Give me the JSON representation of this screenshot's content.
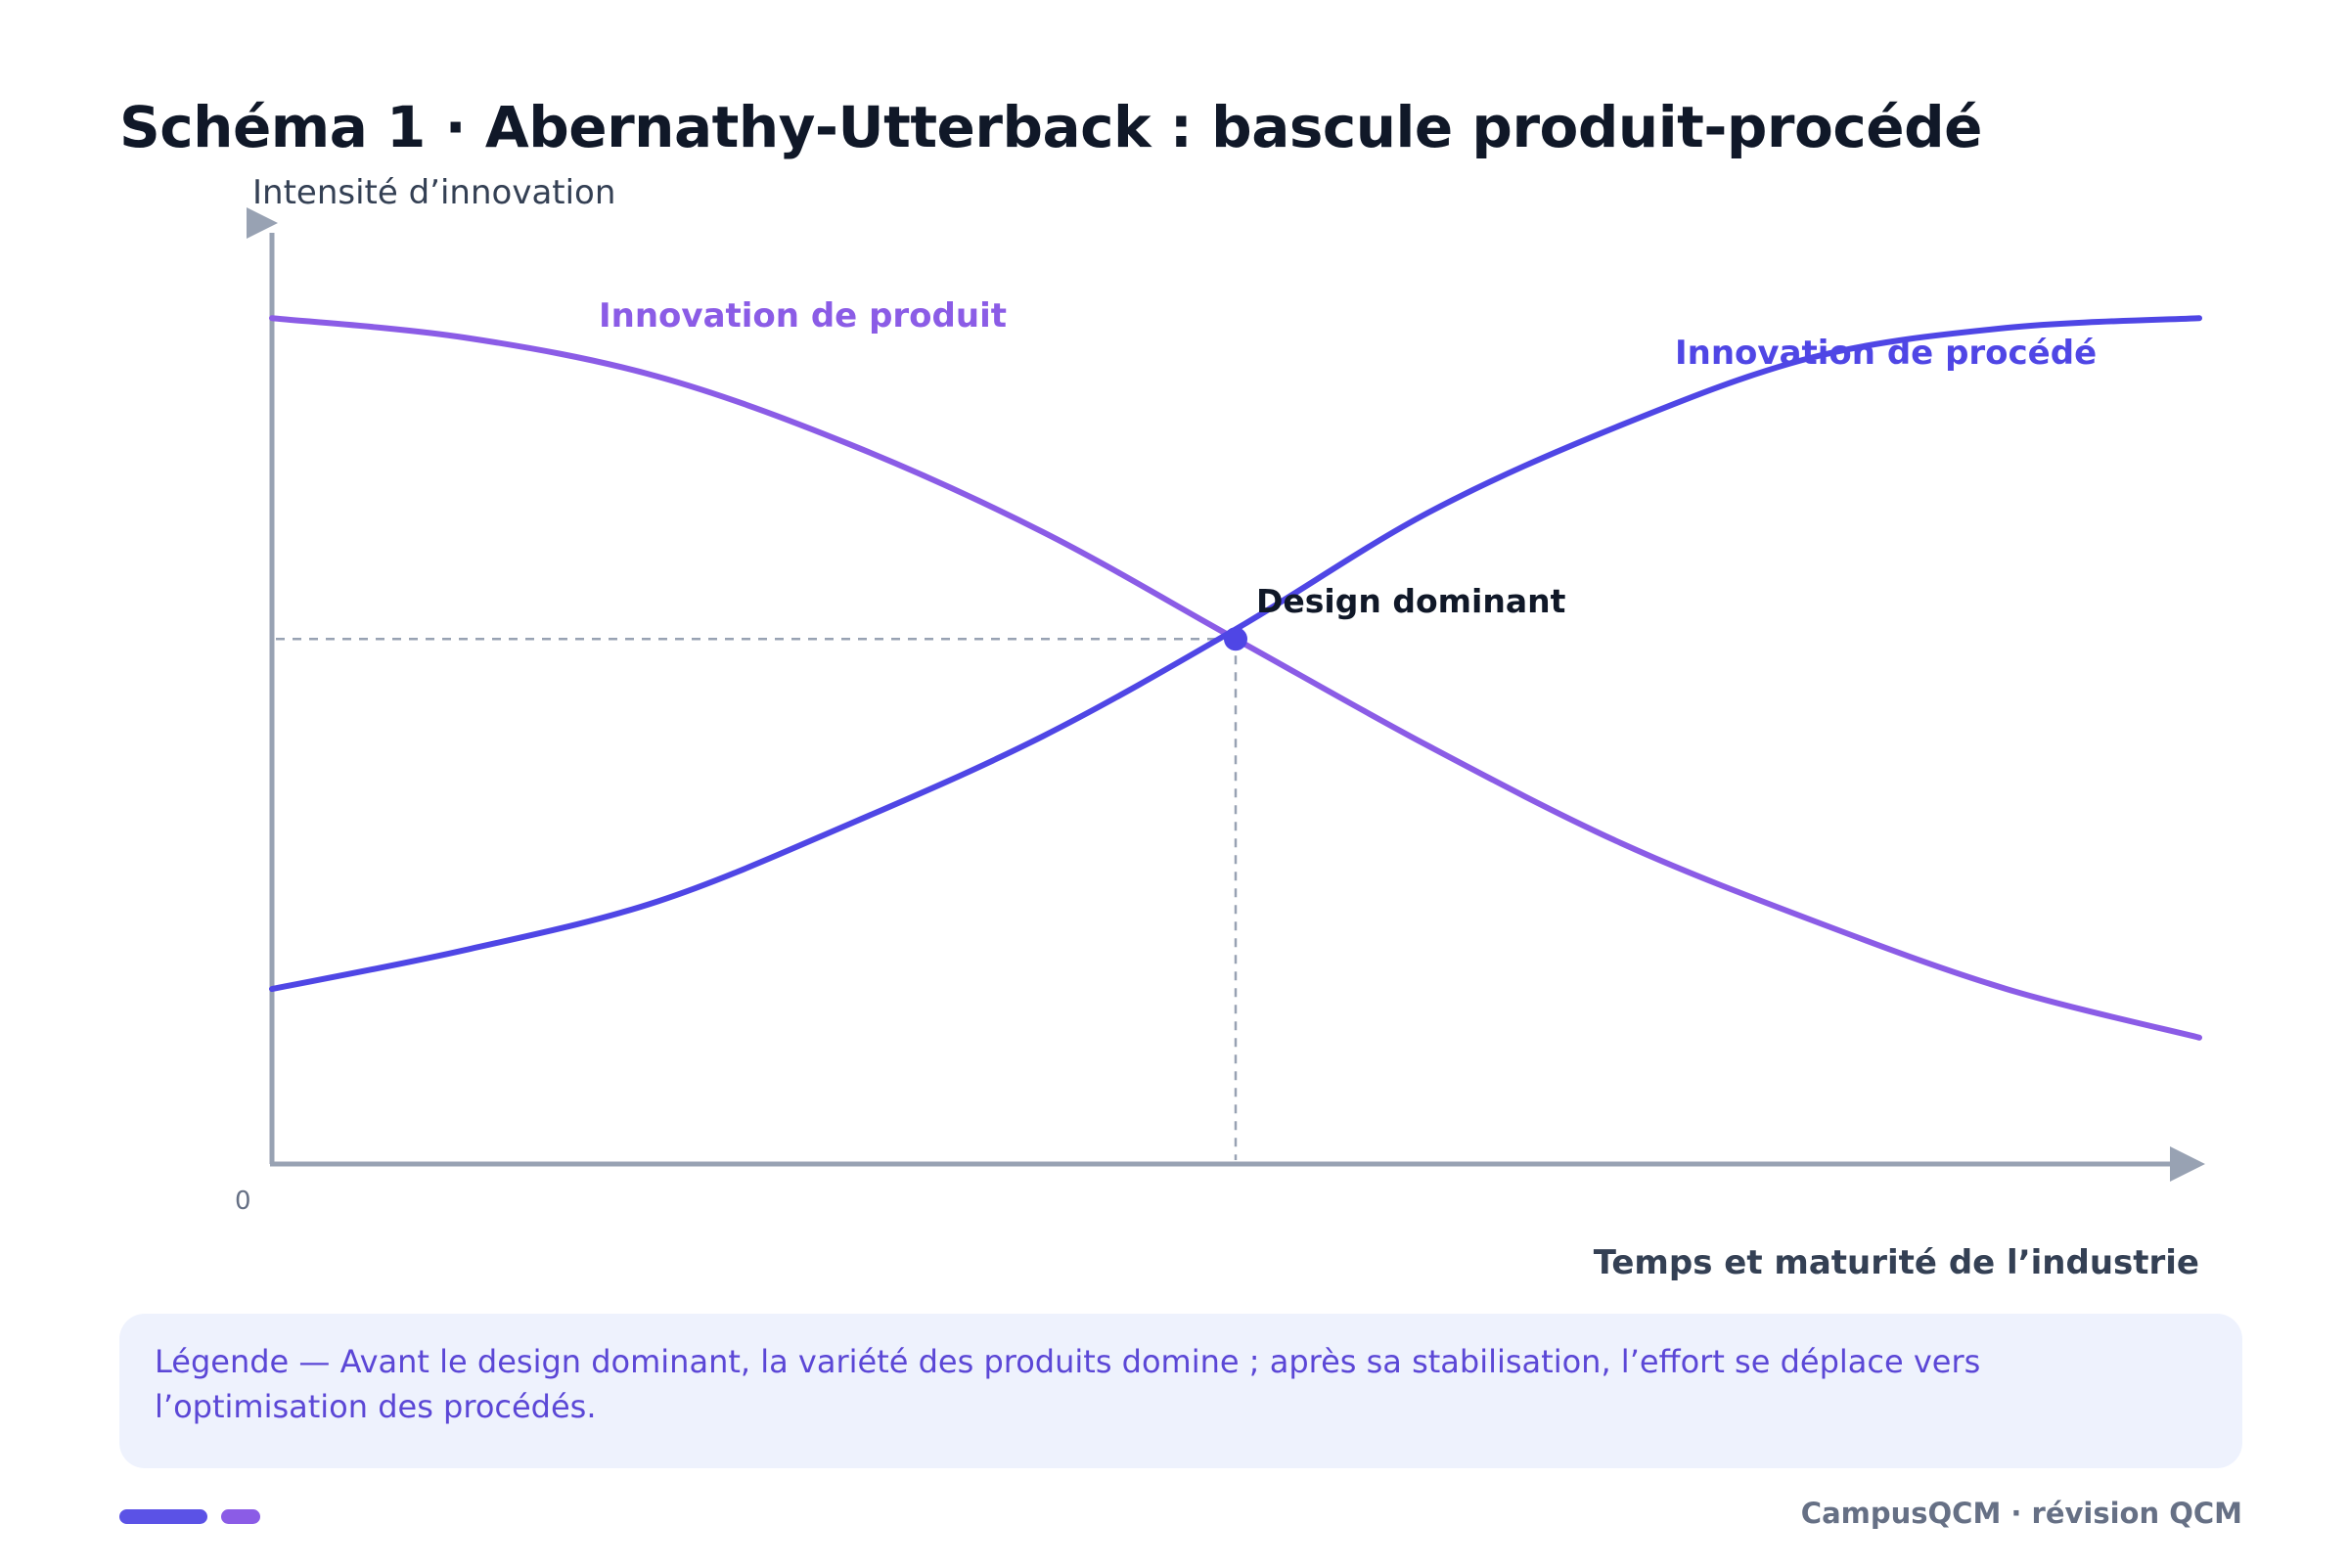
{
  "title": "Schéma 1 · Abernathy-Utterback : bascule produit-procédé",
  "chart_data": {
    "type": "line",
    "ylabel": "Intensité d’innovation",
    "xlabel": "Temps et maturité de l’industrie",
    "origin_label": "0",
    "xlim": [
      0,
      1
    ],
    "ylim": [
      0,
      1
    ],
    "series": [
      {
        "name": "Innovation de produit",
        "color": "#8B5CE6",
        "x": [
          0,
          0.1,
          0.2,
          0.3,
          0.4,
          0.5,
          0.6,
          0.7,
          0.8,
          0.9,
          1.0
        ],
        "y": [
          0.87,
          0.85,
          0.81,
          0.74,
          0.65,
          0.54,
          0.43,
          0.33,
          0.25,
          0.18,
          0.13
        ]
      },
      {
        "name": "Innovation de procédé",
        "color": "#4F46E5",
        "x": [
          0,
          0.1,
          0.2,
          0.3,
          0.4,
          0.5,
          0.6,
          0.7,
          0.8,
          0.9,
          1.0
        ],
        "y": [
          0.18,
          0.22,
          0.27,
          0.35,
          0.44,
          0.55,
          0.67,
          0.76,
          0.83,
          0.86,
          0.87
        ]
      }
    ],
    "annotation": {
      "label": "Design dominant",
      "x": 0.5,
      "y": 0.54
    }
  },
  "legend_text": "Légende — Avant le design dominant, la variété des produits domine ; après sa stabilisation, l’effort se déplace vers l’optimisation des procédés.",
  "footer": "CampusQCM · révision QCM",
  "colors": {
    "product": "#8B5CE6",
    "process": "#4F46E5",
    "axis": "#98A2B3",
    "title": "#101828"
  }
}
